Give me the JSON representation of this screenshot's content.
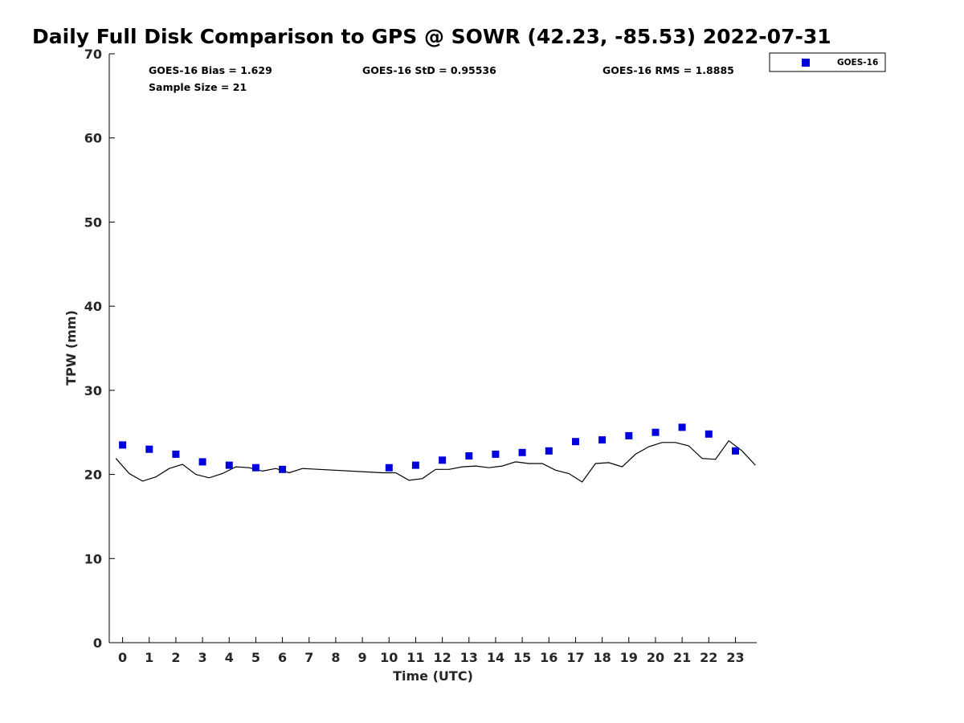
{
  "chart_data": {
    "type": "scatter",
    "title": "Daily Full Disk Comparison to GPS @ SOWR (42.23, -85.53) 2022-07-31",
    "xlabel": "Time (UTC)",
    "ylabel": "TPW (mm)",
    "xlim": [
      -0.5,
      23.8
    ],
    "ylim": [
      0,
      70
    ],
    "xticks": [
      "0",
      "1",
      "2",
      "3",
      "4",
      "5",
      "6",
      "7",
      "8",
      "9",
      "10",
      "11",
      "12",
      "13",
      "14",
      "15",
      "16",
      "17",
      "18",
      "19",
      "20",
      "21",
      "22",
      "23"
    ],
    "yticks": [
      "0",
      "10",
      "20",
      "30",
      "40",
      "50",
      "60",
      "70"
    ],
    "grid": false,
    "legend_position": "top-right",
    "stats": {
      "bias": "GOES-16 Bias = 1.629",
      "sample": "Sample Size = 21",
      "std": "GOES-16 StD = 0.95536",
      "rms": "GOES-16 RMS = 1.8885"
    },
    "series": [
      {
        "name": "GOES-16",
        "kind": "scatter",
        "marker": "square",
        "color": "#0000dd",
        "x": [
          0,
          1,
          2,
          3,
          4,
          5,
          6,
          10,
          11,
          12,
          13,
          14,
          15,
          16,
          17,
          18,
          19,
          20,
          21,
          22,
          23
        ],
        "y": [
          23.5,
          23.0,
          22.4,
          21.5,
          21.1,
          20.8,
          20.6,
          20.8,
          21.1,
          21.7,
          22.2,
          22.4,
          22.6,
          22.8,
          23.9,
          24.1,
          24.6,
          25.0,
          25.6,
          24.8,
          22.8
        ]
      },
      {
        "name": "",
        "kind": "line",
        "color": "#000000",
        "x": [
          -0.25,
          0.25,
          0.75,
          1.25,
          1.75,
          2.25,
          2.75,
          3.25,
          3.75,
          4.25,
          4.75,
          5.25,
          5.75,
          6.25,
          6.75,
          9.75,
          10.25,
          10.75,
          11.25,
          11.75,
          12.25,
          12.75,
          13.25,
          13.75,
          14.25,
          14.75,
          15.25,
          15.75,
          16.25,
          16.75,
          17.25,
          17.75,
          18.25,
          18.75,
          19.25,
          19.75,
          20.25,
          20.75,
          21.25,
          21.75,
          22.25,
          22.75,
          23.25,
          23.75
        ],
        "y": [
          21.9,
          20.1,
          19.2,
          19.7,
          20.7,
          21.2,
          20.0,
          19.6,
          20.1,
          20.9,
          20.8,
          20.4,
          20.7,
          20.2,
          20.7,
          20.2,
          20.2,
          19.3,
          19.5,
          20.6,
          20.6,
          20.9,
          21.0,
          20.8,
          21.0,
          21.5,
          21.3,
          21.3,
          20.5,
          20.1,
          19.1,
          21.3,
          21.4,
          20.9,
          22.4,
          23.3,
          23.8,
          23.8,
          23.4,
          21.9,
          21.8,
          24.0,
          22.8,
          21.1
        ]
      }
    ]
  }
}
